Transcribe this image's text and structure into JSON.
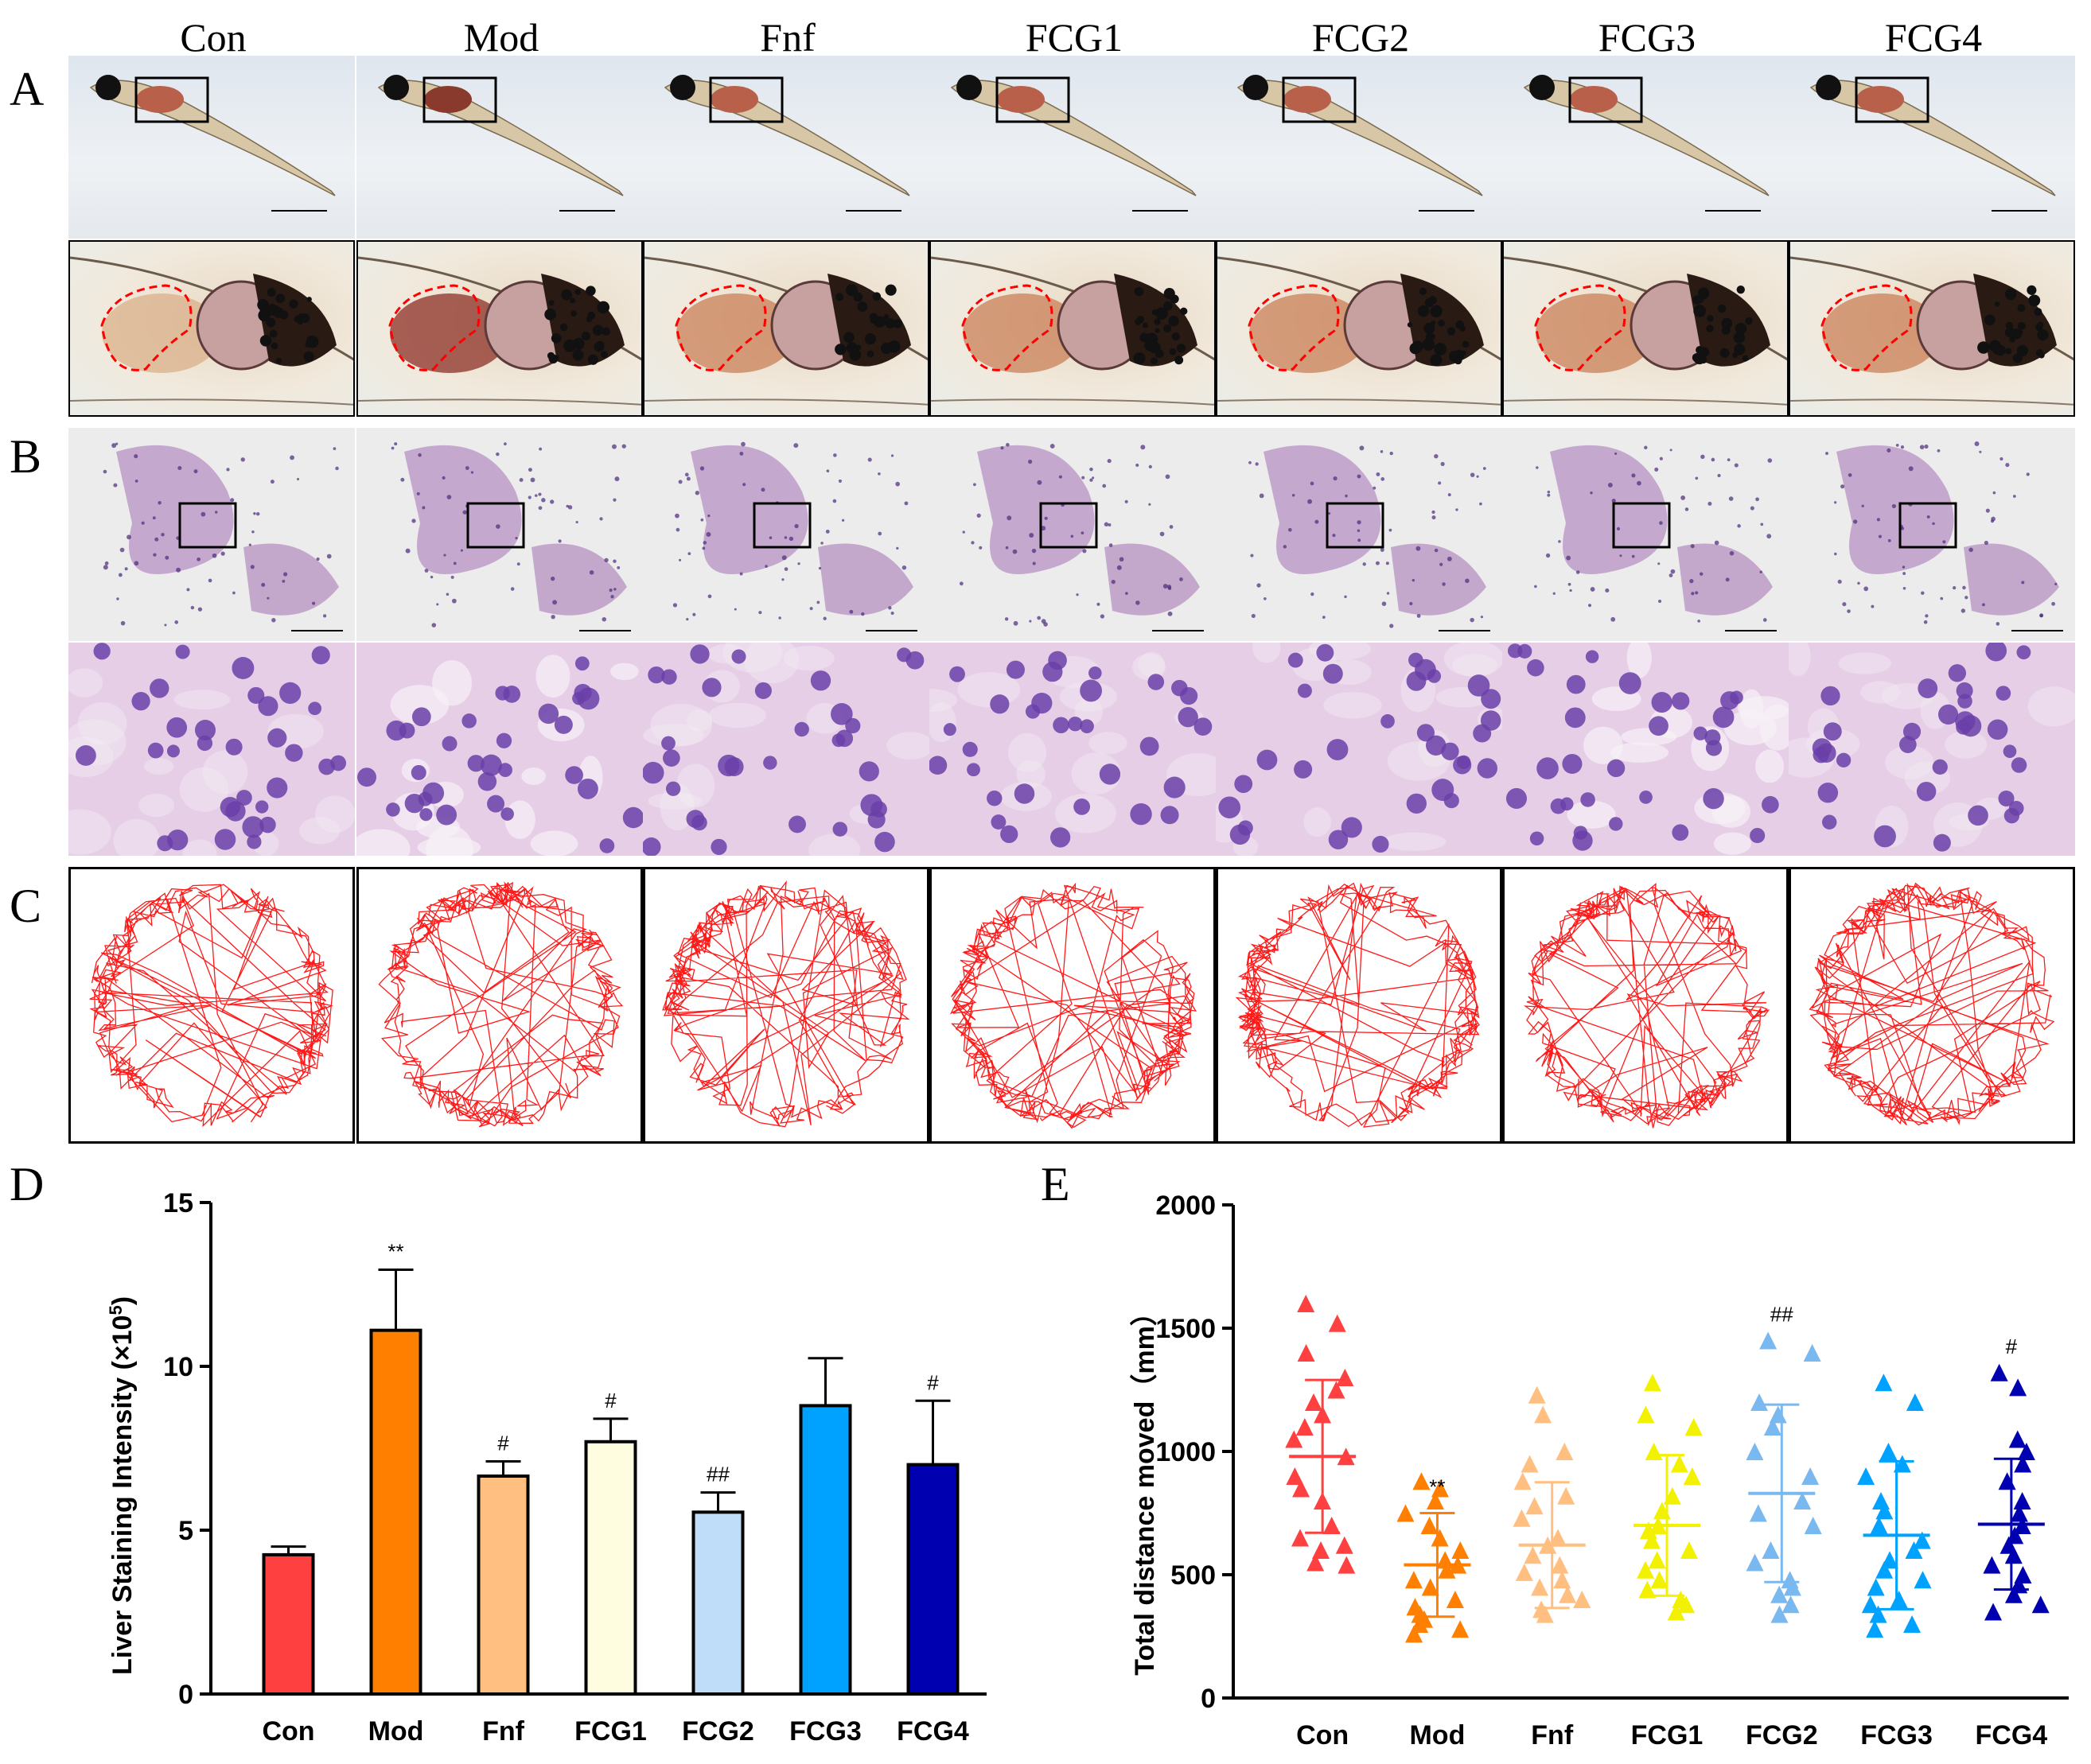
{
  "groups": [
    "Con",
    "Mod",
    "Fnf",
    "FCG1",
    "FCG2",
    "FCG3",
    "FCG4"
  ],
  "panels": {
    "a": "A",
    "b": "B",
    "c": "C",
    "d": "D",
    "e": "E"
  },
  "colors": {
    "Con": "#ff4040",
    "Mod": "#ff7f00",
    "Fnf": "#ffbf80",
    "FCG1": "#fffde0",
    "FCG2": "#bfdcf8",
    "FCG3": "#00a2ff",
    "FCG4": "#0000b0",
    "FCG1_points": "#f2f200",
    "FCG2_points": "#7ab8f0",
    "track": "#ff0000",
    "outline": "#ff0000"
  },
  "chart_data": [
    {
      "type": "bar",
      "panel": "D",
      "categories": [
        "Con",
        "Mod",
        "Fnf",
        "FCG1",
        "FCG2",
        "FCG3",
        "FCG4"
      ],
      "values": [
        4.25,
        11.1,
        6.65,
        7.7,
        5.55,
        8.8,
        7.0
      ],
      "errors": [
        0.25,
        1.85,
        0.45,
        0.7,
        0.6,
        1.45,
        1.95
      ],
      "annotations": [
        "",
        "**",
        "#",
        "#",
        "##",
        "",
        "#"
      ],
      "ylabel_main": "Liver Staining Intensity (×10",
      "ylabel_exp": "5",
      "ylabel_close": ")",
      "ylim": [
        0,
        15
      ],
      "yticks": [
        "0",
        "5",
        "10",
        "15"
      ]
    },
    {
      "type": "scatter",
      "panel": "E",
      "categories": [
        "Con",
        "Mod",
        "Fnf",
        "FCG1",
        "FCG2",
        "FCG3",
        "FCG4"
      ],
      "series": [
        {
          "name": "Con",
          "values": [
            1600,
            1520,
            1400,
            1300,
            1250,
            1200,
            1150,
            1100,
            1050,
            980,
            900,
            850,
            800,
            700,
            650,
            620,
            600,
            550,
            540
          ],
          "mean": 980,
          "sd": 310,
          "marker": "triangle"
        },
        {
          "name": "Mod",
          "values": [
            880,
            850,
            800,
            750,
            700,
            650,
            600,
            560,
            540,
            520,
            480,
            450,
            400,
            370,
            340,
            320,
            300,
            280,
            260
          ],
          "mean": 540,
          "sd": 210,
          "marker": "triangle"
        },
        {
          "name": "Fnf",
          "values": [
            1230,
            1150,
            1000,
            950,
            880,
            820,
            780,
            730,
            650,
            620,
            580,
            540,
            510,
            480,
            450,
            420,
            400,
            360,
            340
          ],
          "mean": 620,
          "sd": 255,
          "marker": "triangle"
        },
        {
          "name": "FCG1",
          "values": [
            1280,
            1150,
            1100,
            1000,
            950,
            900,
            820,
            760,
            700,
            680,
            640,
            600,
            560,
            520,
            480,
            440,
            400,
            380,
            350
          ],
          "mean": 700,
          "sd": 285,
          "marker": "triangle"
        },
        {
          "name": "FCG2",
          "values": [
            1450,
            1400,
            1200,
            1150,
            1100,
            1000,
            900,
            800,
            750,
            700,
            600,
            550,
            480,
            450,
            420,
            380,
            340
          ],
          "mean": 830,
          "sd": 360,
          "marker": "triangle"
        },
        {
          "name": "FCG3",
          "values": [
            1280,
            1200,
            1000,
            950,
            900,
            800,
            760,
            700,
            640,
            600,
            560,
            520,
            480,
            450,
            400,
            380,
            340,
            300,
            280
          ],
          "mean": 660,
          "sd": 300,
          "marker": "triangle"
        },
        {
          "name": "FCG4",
          "values": [
            1320,
            1260,
            1050,
            1000,
            950,
            880,
            800,
            750,
            700,
            660,
            620,
            580,
            540,
            500,
            460,
            420,
            380,
            350
          ],
          "mean": 705,
          "sd": 265,
          "marker": "triangle"
        }
      ],
      "annotations": [
        "",
        "**",
        "",
        "",
        "##",
        "",
        "#"
      ],
      "ylabel": "Total distance moved（mm）",
      "ylim": [
        0,
        2000
      ],
      "yticks": [
        "0",
        "500",
        "1000",
        "1500",
        "2000"
      ]
    }
  ]
}
